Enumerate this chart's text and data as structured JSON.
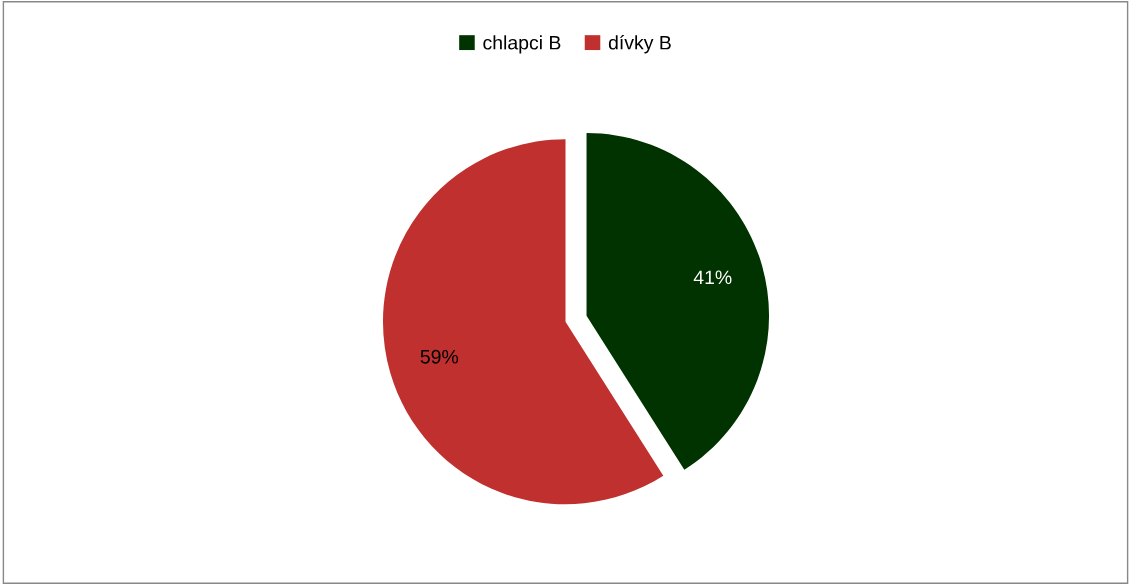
{
  "chart_data": {
    "type": "pie",
    "categories": [
      "chlapci B",
      "dívky B"
    ],
    "values": [
      41,
      59
    ],
    "colors": [
      "#003300",
      "#c0302f"
    ],
    "value_labels": [
      "41%",
      "59%"
    ],
    "legend": "top"
  }
}
